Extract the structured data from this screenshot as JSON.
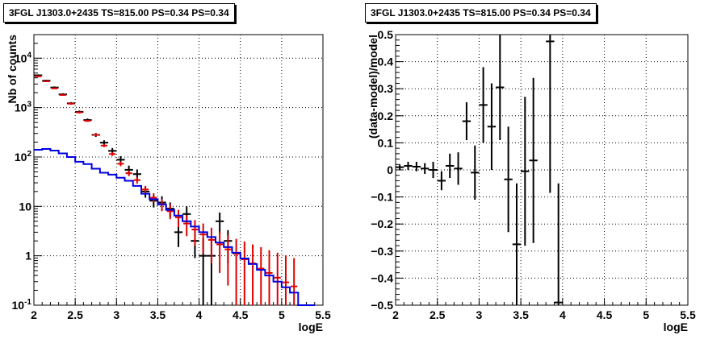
{
  "chart_data": [
    {
      "type": "scatter",
      "title": "3FGL J1303.0+2435 TS=815.00 PS=0.34 PS=0.34",
      "xlabel": "logE",
      "ylabel": "Nb of counts",
      "xlim": [
        2,
        5.5
      ],
      "ylim": [
        0.1,
        30000
      ],
      "y_scale": "log",
      "grid": true,
      "x_ticks": [
        "2",
        "2.5",
        "3",
        "3.5",
        "4",
        "4.5",
        "5",
        "5.5"
      ],
      "y_ticks": [
        {
          "value": 0.1,
          "label": "10⁻¹"
        },
        {
          "value": 1,
          "label": "1"
        },
        {
          "value": 10,
          "label": "10"
        },
        {
          "value": 100,
          "label": "10²"
        },
        {
          "value": 1000,
          "label": "10³"
        },
        {
          "value": 10000,
          "label": "10⁴"
        }
      ],
      "colors": {
        "data": "#000000",
        "model_counts": "#e00000",
        "source_model": "#0000e0"
      },
      "series": [
        {
          "kind": "points_with_errors",
          "color": "#000000",
          "points": [
            {
              "x": 2.05,
              "y": 4500,
              "xerr": 0.05,
              "ylo": 4300,
              "yhi": 4700
            },
            {
              "x": 2.15,
              "y": 3500,
              "xerr": 0.05,
              "ylo": 3350,
              "yhi": 3650
            },
            {
              "x": 2.25,
              "y": 2550,
              "xerr": 0.05,
              "ylo": 2420,
              "yhi": 2680
            },
            {
              "x": 2.35,
              "y": 1850,
              "xerr": 0.05,
              "ylo": 1750,
              "yhi": 1950
            },
            {
              "x": 2.45,
              "y": 1220,
              "xerr": 0.05,
              "ylo": 1150,
              "yhi": 1290
            },
            {
              "x": 2.55,
              "y": 820,
              "xerr": 0.05,
              "ylo": 770,
              "yhi": 870
            },
            {
              "x": 2.65,
              "y": 560,
              "xerr": 0.05,
              "ylo": 520,
              "yhi": 600
            },
            {
              "x": 2.75,
              "y": 280,
              "xerr": 0.05,
              "ylo": 255,
              "yhi": 305
            },
            {
              "x": 2.85,
              "y": 195,
              "xerr": 0.05,
              "ylo": 172,
              "yhi": 218
            },
            {
              "x": 2.95,
              "y": 133,
              "xerr": 0.05,
              "ylo": 114,
              "yhi": 152
            },
            {
              "x": 3.05,
              "y": 88,
              "xerr": 0.05,
              "ylo": 72,
              "yhi": 104
            },
            {
              "x": 3.15,
              "y": 55,
              "xerr": 0.05,
              "ylo": 43,
              "yhi": 67
            },
            {
              "x": 3.25,
              "y": 45,
              "xerr": 0.05,
              "ylo": 34,
              "yhi": 56
            },
            {
              "x": 3.35,
              "y": 20,
              "xerr": 0.05,
              "ylo": 15,
              "yhi": 25
            },
            {
              "x": 3.45,
              "y": 13,
              "xerr": 0.05,
              "ylo": 9.5,
              "yhi": 17
            },
            {
              "x": 3.55,
              "y": 12,
              "xerr": 0.05,
              "ylo": 8.5,
              "yhi": 16
            },
            {
              "x": 3.65,
              "y": 9,
              "xerr": 0.05,
              "ylo": 6,
              "yhi": 12
            },
            {
              "x": 3.75,
              "y": 3,
              "xerr": 0.05,
              "ylo": 1.5,
              "yhi": 4.8
            },
            {
              "x": 3.85,
              "y": 7,
              "xerr": 0.05,
              "ylo": 4.5,
              "yhi": 10
            },
            {
              "x": 3.95,
              "y": 2,
              "xerr": 0.05,
              "ylo": 0.9,
              "yhi": 3.3
            },
            {
              "x": 4.05,
              "y": 1,
              "xerr": 0.05,
              "ylo": 0.1,
              "yhi": 2.3
            },
            {
              "x": 4.15,
              "y": 1,
              "xerr": 0.05,
              "ylo": 0.1,
              "yhi": 2.3
            },
            {
              "x": 4.25,
              "y": 5,
              "xerr": 0.05,
              "ylo": 2.8,
              "yhi": 7.5
            },
            {
              "x": 4.35,
              "y": 2,
              "xerr": 0.05,
              "ylo": 0.7,
              "yhi": 3.3
            }
          ]
        },
        {
          "kind": "model_bars",
          "color": "#e00000",
          "points": [
            {
              "x": 2.05,
              "y": 4300,
              "ylo": 4150,
              "yhi": 4450
            },
            {
              "x": 2.15,
              "y": 3400,
              "ylo": 3280,
              "yhi": 3520
            },
            {
              "x": 2.25,
              "y": 2450,
              "ylo": 2360,
              "yhi": 2540
            },
            {
              "x": 2.35,
              "y": 1800,
              "ylo": 1730,
              "yhi": 1870
            },
            {
              "x": 2.45,
              "y": 1200,
              "ylo": 1150,
              "yhi": 1250
            },
            {
              "x": 2.55,
              "y": 800,
              "ylo": 765,
              "yhi": 835
            },
            {
              "x": 2.65,
              "y": 540,
              "ylo": 515,
              "yhi": 565
            },
            {
              "x": 2.75,
              "y": 280,
              "ylo": 264,
              "yhi": 296
            },
            {
              "x": 2.85,
              "y": 170,
              "ylo": 158,
              "yhi": 182
            },
            {
              "x": 2.95,
              "y": 115,
              "ylo": 105,
              "yhi": 125
            },
            {
              "x": 3.05,
              "y": 73,
              "ylo": 65,
              "yhi": 81
            },
            {
              "x": 3.15,
              "y": 47,
              "ylo": 41,
              "yhi": 53
            },
            {
              "x": 3.25,
              "y": 34,
              "ylo": 29,
              "yhi": 39
            },
            {
              "x": 3.35,
              "y": 22,
              "ylo": 18,
              "yhi": 26
            },
            {
              "x": 3.45,
              "y": 15,
              "ylo": 12,
              "yhi": 18.5
            },
            {
              "x": 3.55,
              "y": 11,
              "ylo": 8,
              "yhi": 14
            },
            {
              "x": 3.65,
              "y": 8,
              "ylo": 5.5,
              "yhi": 11
            },
            {
              "x": 3.75,
              "y": 6,
              "ylo": 3.8,
              "yhi": 8.5
            },
            {
              "x": 3.85,
              "y": 4.5,
              "ylo": 2.5,
              "yhi": 6.6
            },
            {
              "x": 3.95,
              "y": 3.4,
              "ylo": 1.6,
              "yhi": 5.3
            },
            {
              "x": 4.05,
              "y": 2.7,
              "ylo": 1.1,
              "yhi": 4.5
            },
            {
              "x": 4.15,
              "y": 2.1,
              "ylo": 0.7,
              "yhi": 3.7
            },
            {
              "x": 4.25,
              "y": 1.7,
              "ylo": 0.45,
              "yhi": 3.1
            },
            {
              "x": 4.35,
              "y": 1.35,
              "ylo": 0.25,
              "yhi": 2.6
            },
            {
              "x": 4.45,
              "y": 1.1,
              "ylo": 0.1,
              "yhi": 2.2
            },
            {
              "x": 4.55,
              "y": 0.85,
              "ylo": 0.1,
              "yhi": 1.95
            },
            {
              "x": 4.65,
              "y": 0.7,
              "ylo": 0.1,
              "yhi": 1.7
            },
            {
              "x": 4.75,
              "y": 0.55,
              "ylo": 0.1,
              "yhi": 1.5
            },
            {
              "x": 4.85,
              "y": 0.45,
              "ylo": 0.1,
              "yhi": 1.3
            },
            {
              "x": 4.95,
              "y": 0.36,
              "ylo": 0.1,
              "yhi": 1.15
            },
            {
              "x": 5.05,
              "y": 0.29,
              "ylo": 0.1,
              "yhi": 1.02
            },
            {
              "x": 5.15,
              "y": 0.24,
              "ylo": 0.1,
              "yhi": 0.9
            }
          ]
        },
        {
          "kind": "step",
          "color": "#0000e0",
          "bin_width": 0.1,
          "x": [
            2.0,
            2.1,
            2.2,
            2.3,
            2.4,
            2.5,
            2.6,
            2.7,
            2.8,
            2.9,
            3.0,
            3.1,
            3.2,
            3.3,
            3.4,
            3.5,
            3.6,
            3.7,
            3.8,
            3.9,
            4.0,
            4.1,
            4.2,
            4.3,
            4.4,
            4.5,
            4.6,
            4.7,
            4.8,
            4.9,
            5.0,
            5.1,
            5.2,
            5.3
          ],
          "y": [
            140,
            145,
            135,
            118,
            100,
            80,
            72,
            58,
            48,
            44,
            38,
            33,
            26,
            18,
            14,
            11,
            8.5,
            6.5,
            5,
            3.9,
            3.0,
            2.4,
            1.85,
            1.5,
            1.15,
            0.88,
            0.68,
            0.52,
            0.4,
            0.3,
            0.23,
            0.18,
            0.1,
            0.1
          ]
        }
      ]
    },
    {
      "type": "scatter",
      "title": "3FGL J1303.0+2435 TS=815.00 PS=0.34 PS=0.34",
      "xlabel": "logE",
      "ylabel": "(data-model)/model",
      "xlim": [
        2,
        5.5
      ],
      "ylim": [
        -0.5,
        0.5
      ],
      "grid": true,
      "x_ticks": [
        "2",
        "2.5",
        "3",
        "3.5",
        "4",
        "4.5",
        "5",
        "5.5"
      ],
      "y_ticks": [
        "−0.5",
        "−0.4",
        "−0.3",
        "−0.2",
        "−0.1",
        "0",
        "0.1",
        "0.2",
        "0.3",
        "0.4",
        "0.5"
      ],
      "colors": {
        "data": "#000000"
      },
      "series": [
        {
          "kind": "points_with_errors",
          "color": "#000000",
          "points": [
            {
              "x": 2.05,
              "y": 0.01,
              "xerr": 0.05,
              "ylo": 0.0,
              "yhi": 0.02
            },
            {
              "x": 2.15,
              "y": 0.015,
              "xerr": 0.05,
              "ylo": 0.0,
              "yhi": 0.03
            },
            {
              "x": 2.25,
              "y": 0.012,
              "xerr": 0.05,
              "ylo": -0.005,
              "yhi": 0.03
            },
            {
              "x": 2.35,
              "y": 0.005,
              "xerr": 0.05,
              "ylo": -0.015,
              "yhi": 0.025
            },
            {
              "x": 2.45,
              "y": 0.0,
              "xerr": 0.05,
              "ylo": -0.03,
              "yhi": 0.03
            },
            {
              "x": 2.55,
              "y": -0.04,
              "xerr": 0.05,
              "ylo": -0.075,
              "yhi": -0.005
            },
            {
              "x": 2.65,
              "y": 0.015,
              "xerr": 0.05,
              "ylo": -0.03,
              "yhi": 0.06
            },
            {
              "x": 2.75,
              "y": 0.005,
              "xerr": 0.05,
              "ylo": -0.055,
              "yhi": 0.065
            },
            {
              "x": 2.85,
              "y": 0.18,
              "xerr": 0.05,
              "ylo": 0.11,
              "yhi": 0.25
            },
            {
              "x": 2.95,
              "y": -0.01,
              "xerr": 0.05,
              "ylo": -0.11,
              "yhi": 0.09
            },
            {
              "x": 3.05,
              "y": 0.24,
              "xerr": 0.05,
              "ylo": 0.1,
              "yhi": 0.38
            },
            {
              "x": 3.15,
              "y": 0.16,
              "xerr": 0.05,
              "ylo": 0.0,
              "yhi": 0.32
            },
            {
              "x": 3.25,
              "y": 0.305,
              "xerr": 0.05,
              "ylo": 0.11,
              "yhi": 0.5
            },
            {
              "x": 3.35,
              "y": -0.035,
              "xerr": 0.05,
              "ylo": -0.23,
              "yhi": 0.16
            },
            {
              "x": 3.45,
              "y": -0.275,
              "xerr": 0.05,
              "ylo": -0.5,
              "yhi": -0.05
            },
            {
              "x": 3.55,
              "y": -0.005,
              "xerr": 0.05,
              "ylo": -0.28,
              "yhi": 0.27
            },
            {
              "x": 3.65,
              "y": 0.035,
              "xerr": 0.05,
              "ylo": -0.27,
              "yhi": 0.34
            },
            {
              "x": 3.85,
              "y": 0.475,
              "xerr": 0.05,
              "ylo": -0.085,
              "yhi": 0.5
            },
            {
              "x": 3.95,
              "y": -0.49,
              "xerr": 0.05,
              "ylo": -0.5,
              "yhi": -0.05
            }
          ]
        }
      ]
    }
  ]
}
